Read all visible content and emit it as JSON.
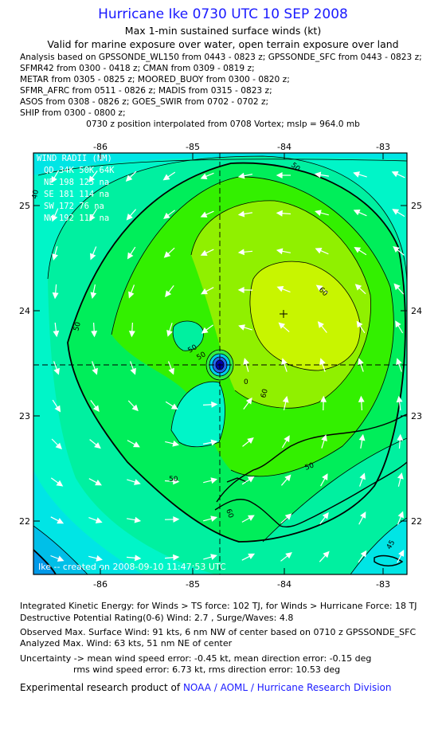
{
  "header": {
    "title": "Hurricane Ike 0730 UTC 10 SEP 2008",
    "subtitle": "Max 1-min sustained surface winds (kt)",
    "valid_line": "Valid for marine exposure over water, open terrain exposure over land",
    "analysis_lines": [
      "Analysis based on  GPSSONDE_WL150 from 0443 - 0823 z;  GPSSONDE_SFC from 0443 - 0823 z;",
      "SFMR42 from 0300 - 0418 z;  CMAN from 0309 - 0819 z;",
      "METAR from 0305 - 0825 z;  MOORED_BUOY from 0300 - 0820 z;",
      "SFMR_AFRC from 0511 - 0826 z;  MADIS from 0315 - 0823 z;",
      "ASOS from 0308 - 0826 z;  GOES_SWIR from 0702 - 0702 z;",
      "SHIP from 0300 - 0800 z;"
    ],
    "position_line": "0730 z position interpolated from 0708 Vortex; mslp = 964.0 mb"
  },
  "map": {
    "lon_ticks": [
      "-86",
      "-85",
      "-84",
      "-83"
    ],
    "lat_ticks": [
      "25",
      "24",
      "23",
      "22"
    ],
    "lon_range": [
      -86.6,
      -82.75
    ],
    "lat_range": [
      21.5,
      25.5
    ],
    "center_lon": -84.75,
    "center_lat": 23.5,
    "center_mark_lon": -84.02,
    "center_mark_lat": 23.98,
    "contour_labels": [
      "50",
      "50",
      "50",
      "50",
      "60",
      "60",
      "50",
      "40",
      "60",
      "50",
      "45",
      "0"
    ],
    "wind_radii": {
      "title": "WIND RADII (NM)",
      "header": "QD  34K  50K  64K",
      "rows": [
        "NE  198  125   na",
        "SE  181  114   na",
        "SW  172   76   na",
        "NW  192  117   na"
      ]
    },
    "credit": "Ike -- created on 2008-09-10  11:47:53 UTC",
    "colors": {
      "cyan": "#00e5e5",
      "aqua_light": "#00f5c8",
      "sea_green": "#00f0a0",
      "green": "#00ee5a",
      "bright_green": "#33f000",
      "lime": "#90f000",
      "yellow_green": "#c8f500",
      "deep_blue": "#0066e0"
    }
  },
  "footer": {
    "line1": "Integrated Kinetic Energy:  for Winds > TS force: 102 TJ,  for Winds > Hurricane Force: 18 TJ",
    "line2": "Destructive Potential Rating(0-6)   Wind: 2.7 , Surge/Waves: 4.8",
    "line3": "Observed Max. Surface Wind: 91 kts, 6 nm NW of center based on 0710 z GPSSONDE_SFC",
    "line4": "Analyzed Max. Wind: 63 kts, 51 nm NE of center",
    "line5": "Uncertainty -> mean wind speed error:  -0.45 kt,   mean direction error:  -0.15 deg",
    "line6": "rms wind speed error: 6.73 kt,   rms direction error: 10.53 deg",
    "credit_prefix": "Experimental research product of",
    "credit_org": "NOAA / AOML / Hurricane Research Division"
  }
}
